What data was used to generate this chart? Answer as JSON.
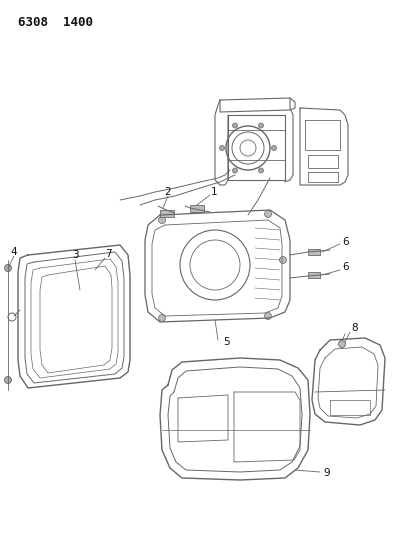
{
  "title": "6308  1400",
  "bg_color": "#ffffff",
  "line_color": "#666666",
  "label_color": "#111111",
  "fig_width": 4.08,
  "fig_height": 5.33,
  "dpi": 100
}
